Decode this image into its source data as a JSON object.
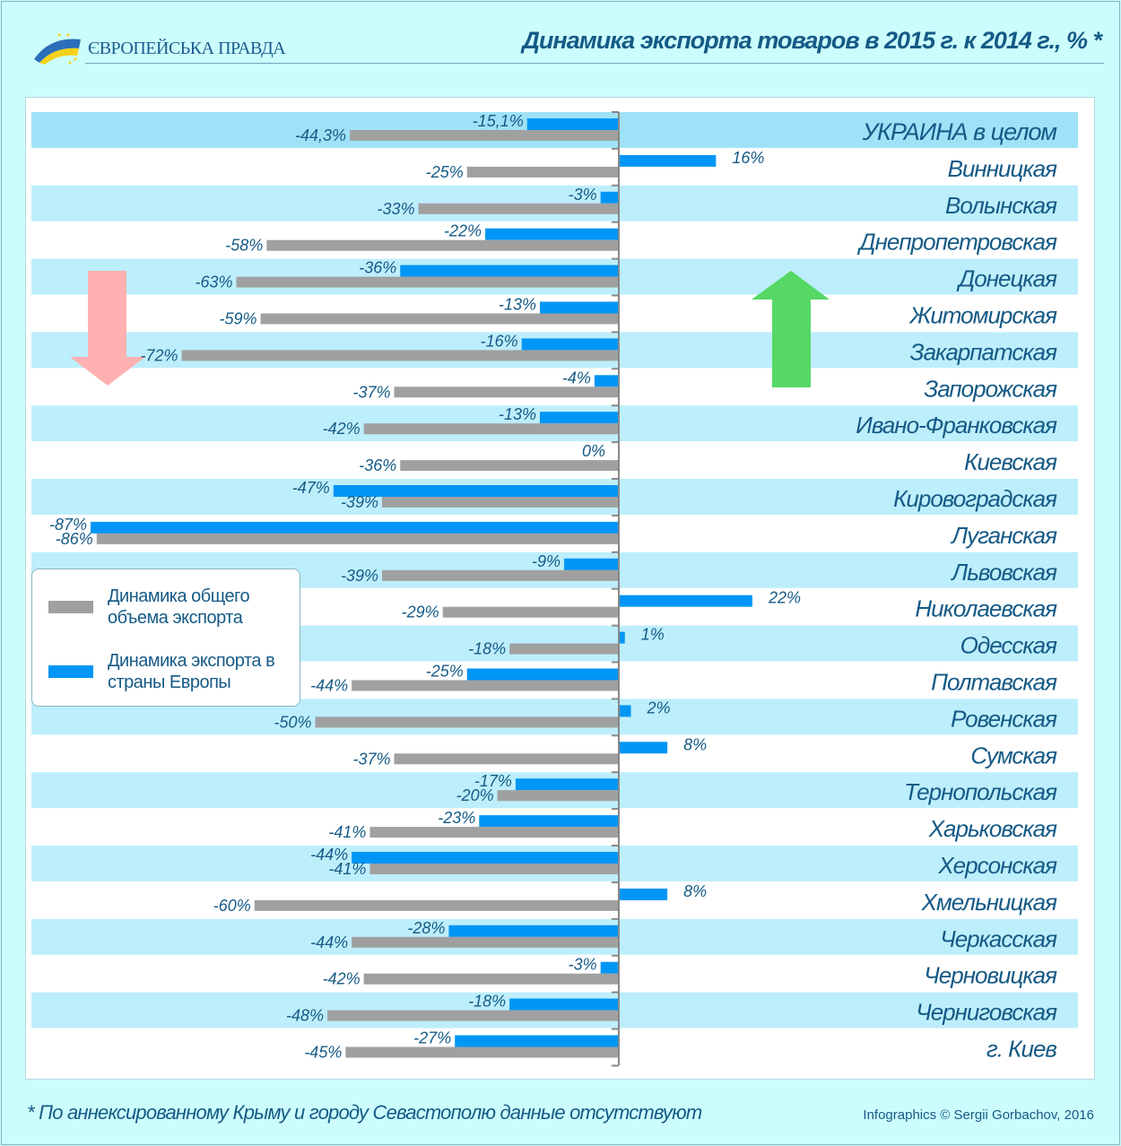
{
  "header": {
    "logo_text": "ЄВРОПЕЙСЬКА ПРАВДА",
    "title": "Динамика экспорта товаров в 2015 г.  к 2014 г., % *"
  },
  "footer": {
    "footnote": "* По аннексированному Крыму и городу Севастополю данные отсутствуют",
    "credit": "Infographics © Sergii Gorbachov, 2016"
  },
  "legend": {
    "total": "Динамика общего объема экспорта",
    "europe": "Динамика экспорта в страны Европы"
  },
  "colors": {
    "total": "#a0a0a0",
    "europe": "#0096f5",
    "band": "#bdeefb",
    "band_highlight": "#9fe2f7",
    "text": "#155a86",
    "arrow_down": "#ffb0b0",
    "arrow_up": "#55d865"
  },
  "chart_data": {
    "type": "bar",
    "orientation": "horizontal",
    "title": "Динамика экспорта товаров в 2015 г.  к 2014 г., % *",
    "categories": [
      "УКРАИНА в целом",
      "Винницкая",
      "Волынская",
      "Днепропетровская",
      "Донецкая",
      "Житомирская",
      "Закарпатская",
      "Запорожская",
      "Ивано-Франковская",
      "Киевская",
      "Кировоградская",
      "Луганская",
      "Львовская",
      "Николаевская",
      "Одесская",
      "Полтавская",
      "Ровенская",
      "Сумская",
      "Тернопольская",
      "Харьковская",
      "Херсонская",
      "Хмельницкая",
      "Черкасская",
      "Черновицкая",
      "Черниговская",
      "г. Киев"
    ],
    "series": [
      {
        "name": "Динамика общего объема экспорта",
        "values": [
          -44.3,
          -25,
          -33,
          -58,
          -63,
          -59,
          -72,
          -37,
          -42,
          -36,
          -39,
          -86,
          -39,
          -29,
          -18,
          -44,
          -50,
          -37,
          -20,
          -41,
          -41,
          -60,
          -44,
          -42,
          -48,
          -45
        ]
      },
      {
        "name": "Динамика экспорта в страны Европы",
        "values": [
          -15.1,
          16,
          -3,
          -22,
          -36,
          -13,
          -16,
          -4,
          -13,
          0,
          -47,
          -87,
          -9,
          22,
          1,
          -25,
          2,
          8,
          -17,
          -23,
          -44,
          8,
          -28,
          -3,
          -18,
          -27
        ]
      }
    ],
    "xlim": [
      -87,
      22
    ],
    "unit": "%"
  }
}
